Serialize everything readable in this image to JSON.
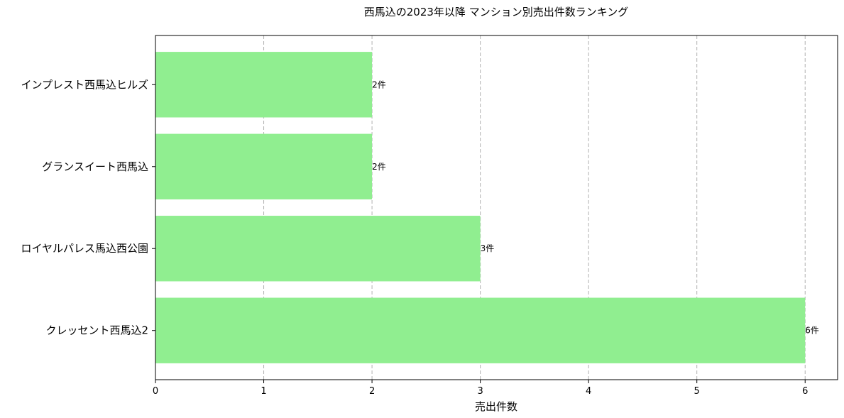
{
  "chart_data": {
    "type": "bar",
    "orientation": "horizontal",
    "title": "西馬込の2023年以降 マンション別売出件数ランキング",
    "xlabel": "売出件数",
    "ylabel": "",
    "categories": [
      "クレッセント西馬込2",
      "ロイヤルパレス馬込西公園",
      "グランスイート西馬込",
      "インプレスト西馬込ヒルズ"
    ],
    "values": [
      6,
      3,
      2,
      2
    ],
    "value_labels": [
      "6件",
      "3件",
      "2件",
      "2件"
    ],
    "xlim": [
      0,
      6.3
    ],
    "xticks": [
      "0",
      "1",
      "2",
      "3",
      "4",
      "5",
      "6"
    ],
    "grid": "x-dashed",
    "bar_color": "#90ee90"
  }
}
